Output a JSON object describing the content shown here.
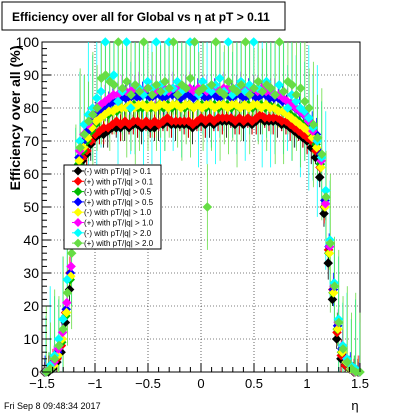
{
  "chart_data": {
    "type": "scatter",
    "title": "Efficiency over all for Global vs   η at pT > 0.11",
    "xlabel": "η",
    "ylabel": "Efficiency over all (%)",
    "xlim": [
      -1.5,
      1.5
    ],
    "ylim": [
      0,
      100
    ],
    "x_ticks": [
      "−1.5",
      "−1",
      "−0.5",
      "0",
      "0.5",
      "1",
      "1.5"
    ],
    "y_ticks": [
      "0",
      "10",
      "20",
      "30",
      "40",
      "50",
      "60",
      "70",
      "80",
      "90",
      "100"
    ],
    "grid": true,
    "legend_position": "left-middle",
    "footer": "Fri Sep  8 09:48:34 2017",
    "x": [
      -1.47,
      -1.43,
      -1.39,
      -1.35,
      -1.31,
      -1.27,
      -1.23,
      -1.19,
      -1.15,
      -1.11,
      -1.07,
      -1.03,
      -0.99,
      -0.95,
      -0.91,
      -0.87,
      -0.83,
      -0.79,
      -0.75,
      -0.71,
      -0.67,
      -0.63,
      -0.59,
      -0.55,
      -0.51,
      -0.47,
      -0.43,
      -0.39,
      -0.35,
      -0.31,
      -0.27,
      -0.23,
      -0.19,
      -0.15,
      -0.11,
      -0.07,
      -0.03,
      0.01,
      0.05,
      0.09,
      0.13,
      0.17,
      0.21,
      0.25,
      0.29,
      0.33,
      0.37,
      0.41,
      0.45,
      0.49,
      0.53,
      0.57,
      0.61,
      0.65,
      0.69,
      0.73,
      0.77,
      0.81,
      0.85,
      0.89,
      0.93,
      0.97,
      1.01,
      1.05,
      1.09,
      1.13,
      1.17,
      1.21,
      1.25,
      1.29,
      1.33,
      1.37,
      1.41,
      1.45,
      1.49
    ],
    "series": [
      {
        "name": "(-) with pT/|q| > 0.1",
        "color": "#000000",
        "values": [
          0,
          0,
          1,
          3,
          6,
          15,
          25,
          50,
          60,
          64,
          66,
          69,
          71,
          72,
          72,
          73,
          74,
          74,
          74,
          75,
          74,
          75,
          75,
          74,
          75,
          74,
          74,
          75,
          75,
          76,
          75,
          75,
          75,
          75,
          75,
          74,
          75,
          76,
          75,
          76,
          75,
          76,
          76,
          76,
          76,
          75,
          76,
          75,
          76,
          75,
          76,
          77,
          76,
          76,
          76,
          76,
          75,
          75,
          74,
          73,
          72,
          71,
          70,
          68,
          65,
          59,
          48,
          33,
          22,
          10,
          4,
          2,
          1,
          0,
          0
        ]
      },
      {
        "name": "(+) with pT/|q| > 0.1",
        "color": "#ff0000",
        "values": [
          0,
          1,
          2,
          4,
          8,
          18,
          30,
          54,
          62,
          65,
          67,
          70,
          72,
          73,
          74,
          74,
          75,
          76,
          75,
          76,
          75,
          76,
          76,
          75,
          76,
          75,
          76,
          75,
          76,
          77,
          76,
          76,
          76,
          76,
          76,
          75,
          76,
          77,
          76,
          77,
          76,
          77,
          77,
          77,
          77,
          76,
          77,
          76,
          77,
          76,
          77,
          78,
          77,
          77,
          77,
          77,
          76,
          76,
          75,
          74,
          73,
          72,
          71,
          70,
          67,
          62,
          50,
          37,
          25,
          12,
          5,
          2,
          1,
          0,
          0
        ]
      },
      {
        "name": "(-) with pT/|q| > 0.5",
        "color": "#00bb00",
        "values": [
          0,
          1,
          2,
          5,
          9,
          17,
          28,
          52,
          63,
          67,
          70,
          73,
          75,
          77,
          78,
          78,
          79,
          79,
          80,
          80,
          80,
          81,
          80,
          80,
          81,
          80,
          80,
          81,
          80,
          81,
          80,
          81,
          81,
          80,
          81,
          80,
          81,
          81,
          80,
          81,
          81,
          80,
          81,
          81,
          80,
          81,
          80,
          81,
          81,
          80,
          81,
          81,
          80,
          81,
          80,
          80,
          79,
          79,
          78,
          77,
          76,
          75,
          74,
          72,
          69,
          63,
          50,
          36,
          24,
          13,
          6,
          3,
          1,
          0,
          0
        ]
      },
      {
        "name": "(+) with pT/|q| > 0.5",
        "color": "#0000ff",
        "values": [
          0,
          1,
          3,
          6,
          10,
          19,
          30,
          55,
          65,
          70,
          73,
          76,
          78,
          79,
          80,
          81,
          82,
          82,
          83,
          83,
          83,
          84,
          83,
          84,
          84,
          83,
          84,
          84,
          83,
          84,
          84,
          84,
          83,
          84,
          84,
          83,
          84,
          84,
          83,
          84,
          84,
          83,
          84,
          84,
          83,
          84,
          84,
          83,
          84,
          84,
          83,
          84,
          84,
          83,
          83,
          83,
          82,
          82,
          81,
          80,
          79,
          78,
          77,
          75,
          72,
          66,
          52,
          38,
          25,
          14,
          7,
          3,
          1,
          0,
          0
        ]
      },
      {
        "name": "(-) with pT/|q| > 1.0",
        "color": "#ffff00",
        "values": [
          0,
          1,
          2,
          5,
          10,
          18,
          29,
          54,
          64,
          68,
          71,
          74,
          76,
          77,
          78,
          79,
          79,
          80,
          80,
          80,
          81,
          80,
          81,
          81,
          80,
          81,
          80,
          81,
          81,
          80,
          81,
          81,
          80,
          81,
          81,
          80,
          81,
          80,
          81,
          81,
          80,
          81,
          81,
          80,
          81,
          81,
          80,
          81,
          80,
          81,
          81,
          80,
          81,
          80,
          80,
          79,
          79,
          78,
          77,
          76,
          75,
          74,
          73,
          71,
          68,
          62,
          50,
          36,
          24,
          13,
          6,
          3,
          1,
          0,
          0
        ]
      },
      {
        "name": "(+) with pT/|q| > 1.0",
        "color": "#ff00ff",
        "values": [
          0,
          1,
          3,
          7,
          12,
          21,
          32,
          57,
          67,
          72,
          75,
          78,
          80,
          81,
          82,
          83,
          84,
          84,
          85,
          85,
          85,
          86,
          86,
          85,
          86,
          86,
          85,
          86,
          86,
          85,
          86,
          86,
          85,
          86,
          86,
          85,
          86,
          86,
          85,
          86,
          86,
          85,
          86,
          86,
          85,
          86,
          86,
          85,
          86,
          86,
          85,
          86,
          85,
          85,
          84,
          84,
          83,
          82,
          81,
          80,
          79,
          78,
          76,
          73,
          70,
          64,
          51,
          38,
          26,
          15,
          8,
          4,
          2,
          0,
          0
        ]
      },
      {
        "name": "(-) with pT/|q| > 2.0",
        "color": "#00ffff",
        "values": [
          0,
          2,
          5,
          10,
          16,
          28,
          40,
          60,
          70,
          75,
          78,
          80,
          83,
          85,
          100,
          89,
          90,
          82,
          85,
          100,
          80,
          87,
          86,
          84,
          88,
          86,
          100,
          87,
          85,
          100,
          86,
          88,
          85,
          86,
          100,
          100,
          84,
          88,
          86,
          85,
          87,
          89,
          85,
          100,
          84,
          86,
          88,
          85,
          87,
          100,
          86,
          85,
          88,
          86,
          84,
          87,
          85,
          80,
          84,
          82,
          80,
          79,
          77,
          74,
          70,
          65,
          55,
          40,
          27,
          16,
          8,
          4,
          2,
          1,
          0
        ]
      },
      {
        "name": "(+) with pT/|q| > 2.0",
        "color": "#66dd44",
        "values": [
          0,
          1,
          4,
          8,
          13,
          24,
          36,
          58,
          68,
          72,
          76,
          78,
          80,
          89,
          90,
          88,
          87,
          100,
          86,
          88,
          84,
          87,
          85,
          100,
          86,
          84,
          87,
          85,
          88,
          86,
          100,
          84,
          87,
          86,
          89,
          100,
          85,
          86,
          50,
          87,
          100,
          85,
          84,
          88,
          86,
          85,
          87,
          100,
          84,
          86,
          88,
          85,
          87,
          86,
          84,
          100,
          85,
          88,
          87,
          84,
          86,
          82,
          80,
          75,
          71,
          66,
          53,
          39,
          26,
          15,
          7,
          3,
          1,
          0,
          0
        ]
      }
    ]
  }
}
